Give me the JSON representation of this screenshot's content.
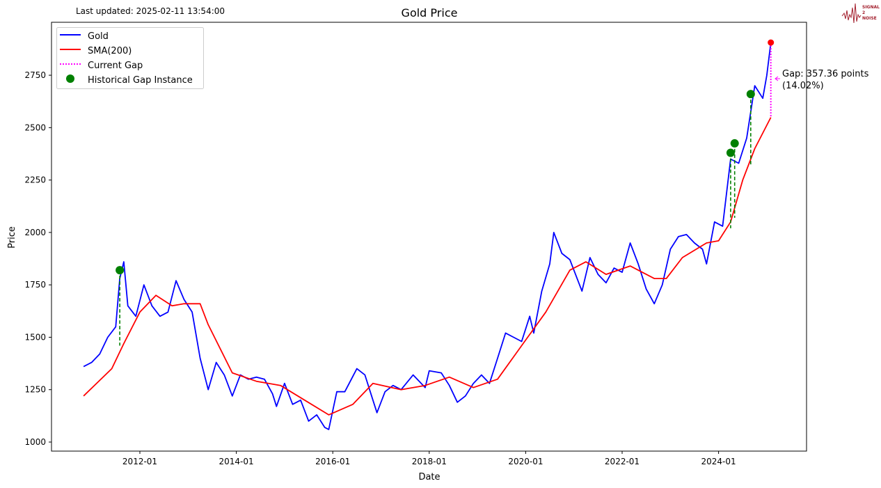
{
  "header": {
    "last_updated": "Last updated: 2025-02-11 13:54:00"
  },
  "logo": {
    "text": [
      "SIGNAL",
      "2",
      "NOISE"
    ],
    "color": "#a31f2d"
  },
  "chart_data": {
    "type": "line",
    "title": "Gold Price",
    "xlabel": "Date",
    "ylabel": "Price",
    "xticks": [
      "2012-01",
      "2014-01",
      "2016-01",
      "2018-01",
      "2020-01",
      "2022-01",
      "2024-01"
    ],
    "yticks": [
      1000,
      1250,
      1500,
      1750,
      2000,
      2250,
      2500,
      2750
    ],
    "ylim": [
      960,
      2985
    ],
    "xlim": [
      "2010-03",
      "2025-11"
    ],
    "grid": false,
    "legend": {
      "position": "top-left",
      "entries": [
        "Gold",
        "SMA(200)",
        "Current Gap",
        "Historical Gap Instance"
      ]
    },
    "series": [
      {
        "name": "Gold",
        "color": "#0000ff",
        "points": [
          [
            "2010-11",
            1360
          ],
          [
            "2011-01",
            1380
          ],
          [
            "2011-03",
            1420
          ],
          [
            "2011-05",
            1500
          ],
          [
            "2011-07",
            1550
          ],
          [
            "2011-08",
            1780
          ],
          [
            "2011-09",
            1860
          ],
          [
            "2011-10",
            1650
          ],
          [
            "2011-12",
            1600
          ],
          [
            "2012-02",
            1750
          ],
          [
            "2012-04",
            1650
          ],
          [
            "2012-06",
            1600
          ],
          [
            "2012-08",
            1620
          ],
          [
            "2012-10",
            1770
          ],
          [
            "2012-12",
            1680
          ],
          [
            "2013-02",
            1620
          ],
          [
            "2013-04",
            1400
          ],
          [
            "2013-06",
            1250
          ],
          [
            "2013-08",
            1380
          ],
          [
            "2013-10",
            1320
          ],
          [
            "2013-12",
            1220
          ],
          [
            "2014-02",
            1320
          ],
          [
            "2014-04",
            1300
          ],
          [
            "2014-06",
            1310
          ],
          [
            "2014-08",
            1300
          ],
          [
            "2014-10",
            1230
          ],
          [
            "2014-11",
            1170
          ],
          [
            "2015-01",
            1280
          ],
          [
            "2015-03",
            1180
          ],
          [
            "2015-05",
            1200
          ],
          [
            "2015-07",
            1100
          ],
          [
            "2015-09",
            1130
          ],
          [
            "2015-11",
            1070
          ],
          [
            "2015-12",
            1060
          ],
          [
            "2016-02",
            1240
          ],
          [
            "2016-04",
            1240
          ],
          [
            "2016-07",
            1350
          ],
          [
            "2016-09",
            1320
          ],
          [
            "2016-11",
            1200
          ],
          [
            "2016-12",
            1140
          ],
          [
            "2017-02",
            1240
          ],
          [
            "2017-04",
            1270
          ],
          [
            "2017-06",
            1250
          ],
          [
            "2017-09",
            1320
          ],
          [
            "2017-12",
            1260
          ],
          [
            "2018-01",
            1340
          ],
          [
            "2018-04",
            1330
          ],
          [
            "2018-06",
            1270
          ],
          [
            "2018-08",
            1190
          ],
          [
            "2018-10",
            1220
          ],
          [
            "2018-12",
            1280
          ],
          [
            "2019-02",
            1320
          ],
          [
            "2019-04",
            1280
          ],
          [
            "2019-06",
            1400
          ],
          [
            "2019-08",
            1520
          ],
          [
            "2019-10",
            1500
          ],
          [
            "2019-12",
            1480
          ],
          [
            "2020-02",
            1600
          ],
          [
            "2020-03",
            1520
          ],
          [
            "2020-05",
            1720
          ],
          [
            "2020-07",
            1850
          ],
          [
            "2020-08",
            2000
          ],
          [
            "2020-10",
            1900
          ],
          [
            "2020-12",
            1870
          ],
          [
            "2021-03",
            1720
          ],
          [
            "2021-05",
            1880
          ],
          [
            "2021-07",
            1800
          ],
          [
            "2021-09",
            1760
          ],
          [
            "2021-11",
            1830
          ],
          [
            "2022-01",
            1810
          ],
          [
            "2022-03",
            1950
          ],
          [
            "2022-05",
            1850
          ],
          [
            "2022-07",
            1730
          ],
          [
            "2022-09",
            1660
          ],
          [
            "2022-11",
            1750
          ],
          [
            "2023-01",
            1920
          ],
          [
            "2023-03",
            1980
          ],
          [
            "2023-05",
            1990
          ],
          [
            "2023-07",
            1950
          ],
          [
            "2023-09",
            1920
          ],
          [
            "2023-10",
            1850
          ],
          [
            "2023-12",
            2050
          ],
          [
            "2024-02",
            2030
          ],
          [
            "2024-04",
            2350
          ],
          [
            "2024-06",
            2330
          ],
          [
            "2024-08",
            2450
          ],
          [
            "2024-10",
            2700
          ],
          [
            "2024-12",
            2640
          ],
          [
            "2025-01",
            2750
          ],
          [
            "2025-02",
            2906
          ]
        ]
      },
      {
        "name": "SMA(200)",
        "color": "#ff0000",
        "points": [
          [
            "2010-11",
            1220
          ],
          [
            "2011-06",
            1350
          ],
          [
            "2011-09",
            1470
          ],
          [
            "2012-01",
            1620
          ],
          [
            "2012-05",
            1700
          ],
          [
            "2012-09",
            1650
          ],
          [
            "2012-12",
            1660
          ],
          [
            "2013-04",
            1660
          ],
          [
            "2013-06",
            1560
          ],
          [
            "2013-12",
            1330
          ],
          [
            "2014-06",
            1290
          ],
          [
            "2014-12",
            1270
          ],
          [
            "2015-06",
            1200
          ],
          [
            "2015-12",
            1130
          ],
          [
            "2016-06",
            1180
          ],
          [
            "2016-11",
            1280
          ],
          [
            "2017-06",
            1250
          ],
          [
            "2017-12",
            1270
          ],
          [
            "2018-06",
            1310
          ],
          [
            "2018-12",
            1260
          ],
          [
            "2019-06",
            1300
          ],
          [
            "2019-12",
            1460
          ],
          [
            "2020-06",
            1620
          ],
          [
            "2020-12",
            1820
          ],
          [
            "2021-04",
            1860
          ],
          [
            "2021-09",
            1800
          ],
          [
            "2022-03",
            1840
          ],
          [
            "2022-09",
            1780
          ],
          [
            "2022-12",
            1780
          ],
          [
            "2023-04",
            1880
          ],
          [
            "2023-10",
            1950
          ],
          [
            "2024-01",
            1960
          ],
          [
            "2024-04",
            2050
          ],
          [
            "2024-07",
            2250
          ],
          [
            "2024-10",
            2400
          ],
          [
            "2025-02",
            2549
          ]
        ]
      }
    ],
    "historical_gaps": [
      {
        "date": "2011-08",
        "price": 1820,
        "sma": 1460
      },
      {
        "date": "2024-04",
        "price": 2380,
        "sma": 2020
      },
      {
        "date": "2024-05",
        "price": 2425,
        "sma": 2070
      },
      {
        "date": "2024-09",
        "price": 2660,
        "sma": 2320
      }
    ],
    "current_gap": {
      "date": "2025-02",
      "price": 2906,
      "sma": 2549,
      "label_line1": "Gap: 357.36 points",
      "label_line2": "(14.02%)",
      "color": "#ff00ff"
    },
    "gap_marker_color": "#008000"
  }
}
